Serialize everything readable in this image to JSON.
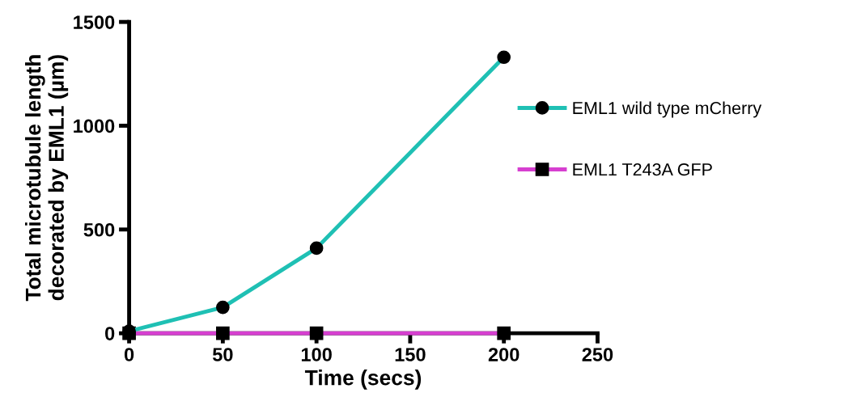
{
  "chart_data": {
    "type": "line",
    "xlabel": "Time (secs)",
    "ylabel": "Total microtubule length\ndecorated by EML1 (µm)",
    "x": [
      0,
      50,
      100,
      200
    ],
    "series": [
      {
        "name": "EML1 wild type mCherry",
        "color": "#1fc0b4",
        "values": [
          10,
          125,
          410,
          1330
        ],
        "marker": "circle"
      },
      {
        "name": "EML1 T243A GFP",
        "color": "#d63fd0",
        "values": [
          0,
          0,
          0,
          0
        ],
        "marker": "square"
      }
    ],
    "xlim": [
      0,
      250
    ],
    "xticks": [
      0,
      50,
      100,
      150,
      200,
      250
    ],
    "ylim": [
      0,
      1500
    ],
    "yticks": [
      0,
      500,
      1000,
      1500
    ],
    "grid": false,
    "legend": "right",
    "line_style": "solid"
  }
}
